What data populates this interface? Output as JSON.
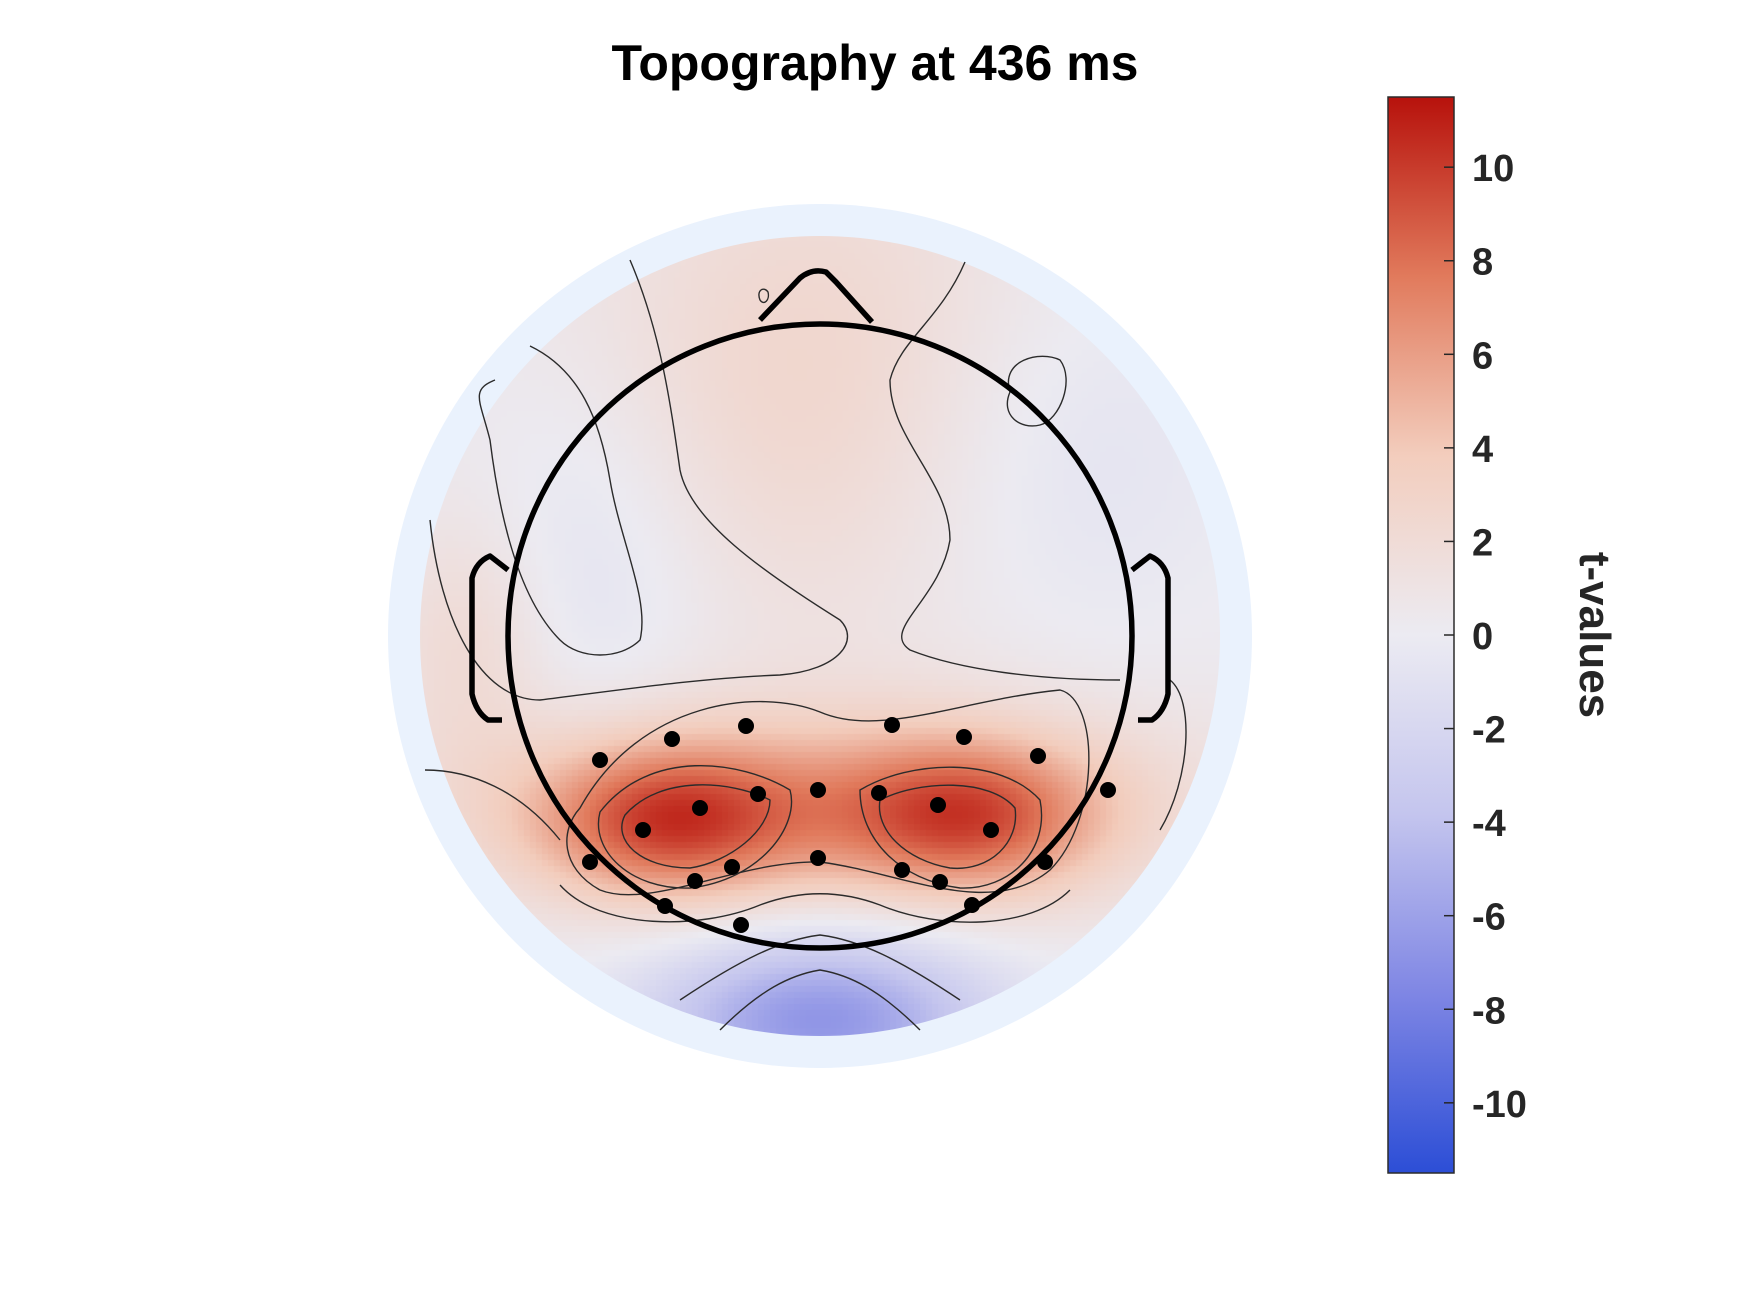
{
  "chart_data": {
    "type": "heatmap",
    "title": "Topography at 436 ms",
    "colorbar": {
      "label": "t-values",
      "range": [
        -11.5,
        11.5
      ],
      "ticks": [
        10,
        8,
        6,
        4,
        2,
        0,
        -2,
        -4,
        -6,
        -8,
        -10
      ],
      "tick_labels": [
        "10",
        "8",
        "6",
        "4",
        "2",
        "0",
        "-2",
        "-4",
        "-6",
        "-8",
        "-10"
      ],
      "colormap": [
        "#2c4ed6",
        "#7f86e4",
        "#c4c5ee",
        "#ecebf2",
        "#f3cdbd",
        "#e17a5c",
        "#b7120c"
      ]
    },
    "topography": {
      "peaks": [
        {
          "region": "left posterior",
          "value": 11
        },
        {
          "region": "right posterior",
          "value": 10.5
        },
        {
          "region": "occipital midline",
          "value": -7
        },
        {
          "region": "left frontal",
          "value": -2
        },
        {
          "region": "right frontal",
          "value": -2
        },
        {
          "region": "frontal midline",
          "value": 3
        }
      ]
    },
    "highlighted_electrodes": 26
  },
  "colors": {
    "head_outline": "#000000",
    "background_ring": "#eaf2fd"
  }
}
